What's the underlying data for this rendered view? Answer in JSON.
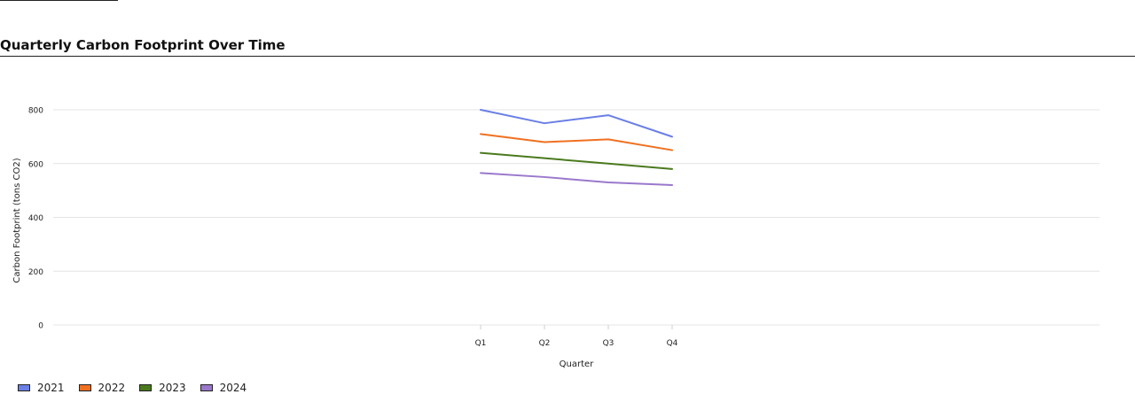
{
  "chart_data": {
    "type": "line",
    "title": "Quarterly Carbon Footprint Over Time",
    "xlabel": "Quarter",
    "ylabel": "Carbon Footprint (tons CO2)",
    "categories": [
      "Q1",
      "Q2",
      "Q3",
      "Q4"
    ],
    "ylim": [
      0,
      800
    ],
    "yticks": [
      "0",
      "200",
      "400",
      "600",
      "800"
    ],
    "grid": true,
    "legend_position": "bottom-left",
    "series": [
      {
        "name": "2021",
        "color": "#6a7fe6",
        "values": [
          800,
          750,
          780,
          700
        ]
      },
      {
        "name": "2022",
        "color": "#f07020",
        "values": [
          710,
          680,
          690,
          650
        ]
      },
      {
        "name": "2023",
        "color": "#4a7a1e",
        "values": [
          640,
          620,
          600,
          580
        ]
      },
      {
        "name": "2024",
        "color": "#9a78cc",
        "values": [
          565,
          550,
          530,
          520
        ]
      }
    ]
  }
}
